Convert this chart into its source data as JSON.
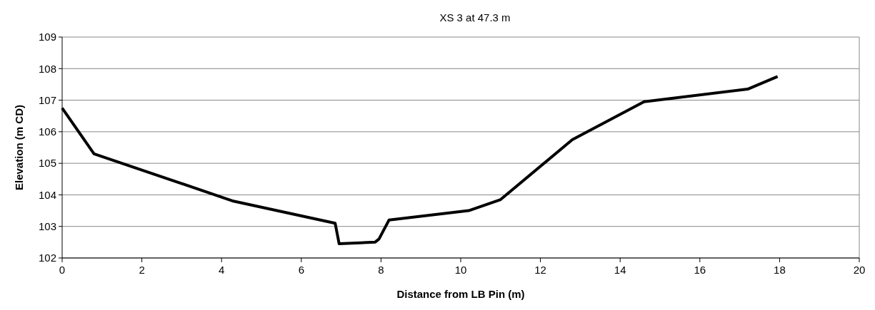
{
  "chart_data": {
    "type": "line",
    "title": "XS 3 at 47.3 m",
    "xlabel": "Distance from LB Pin (m)",
    "ylabel": "Elevation (m CD)",
    "x": [
      0,
      0.8,
      4.3,
      6.85,
      6.95,
      7.85,
      7.95,
      8.2,
      10.2,
      11,
      12.8,
      14.6,
      17.2,
      17.95
    ],
    "series": [
      {
        "color": "#000000",
        "values": [
          106.75,
          105.3,
          103.8,
          103.1,
          102.45,
          102.5,
          102.6,
          103.2,
          103.5,
          103.85,
          105.75,
          106.95,
          107.35,
          107.75
        ]
      }
    ],
    "xlim": [
      0,
      20
    ],
    "xticks": [
      0,
      2,
      4,
      6,
      8,
      10,
      12,
      14,
      16,
      18,
      20
    ],
    "ylim": [
      102,
      109
    ],
    "yticks": [
      102,
      103,
      104,
      105,
      106,
      107,
      108,
      109
    ],
    "grid": "y",
    "marker": "none",
    "line_style": "solid"
  }
}
